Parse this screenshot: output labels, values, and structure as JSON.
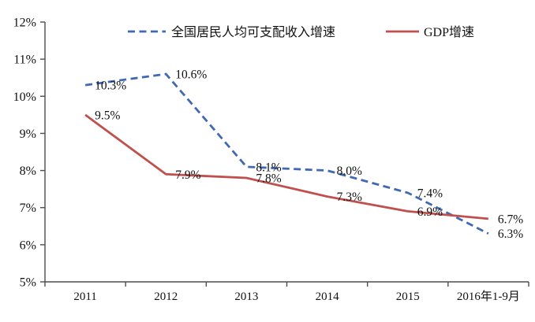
{
  "chart_data": {
    "type": "line",
    "title": "",
    "xlabel": "",
    "ylabel": "",
    "categories": [
      "2011",
      "2012",
      "2013",
      "2014",
      "2015",
      "2016年1-9月"
    ],
    "series": [
      {
        "key": "income-growth",
        "name": "全国居民人均可支配收入增速",
        "color": "#4169B2",
        "line_style": "dashed",
        "values": [
          10.3,
          10.6,
          8.1,
          8.0,
          7.4,
          6.3
        ],
        "point_labels": [
          "10.3%",
          "10.6%",
          "8.1%",
          "8.0%",
          "7.4%",
          "6.3%"
        ]
      },
      {
        "key": "gdp-growth",
        "name": "GDP增速",
        "color": "#C0504D",
        "line_style": "solid",
        "values": [
          9.5,
          7.9,
          7.8,
          7.3,
          6.9,
          6.7
        ],
        "point_labels": [
          "9.5%",
          "7.9%",
          "7.8%",
          "7.3%",
          "6.9%",
          "6.7%"
        ]
      }
    ],
    "ylim": [
      5,
      12
    ],
    "ytick_step": 1,
    "ytick_labels": [
      "5%",
      "6%",
      "7%",
      "8%",
      "9%",
      "10%",
      "11%",
      "12%"
    ],
    "grid": false,
    "data_labels_shown": true,
    "legend_position": "top-center",
    "colors": {
      "axis": "#4d4d4d",
      "text": "#111111",
      "background": "#ffffff"
    }
  }
}
